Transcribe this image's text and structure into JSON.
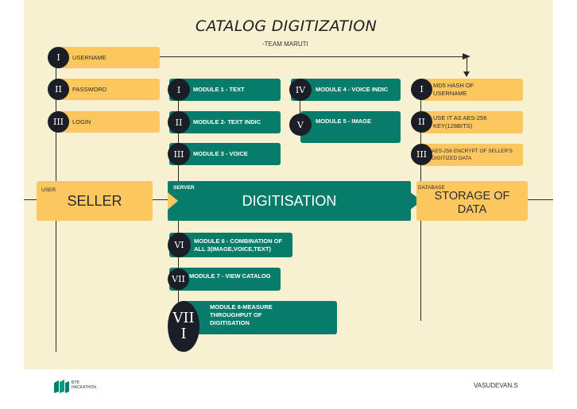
{
  "title": "CATALOG DIGITIZATION",
  "subtitle": "-TEAM MARUTI",
  "seller": {
    "tag": "USER",
    "label": "SELLER",
    "steps": [
      {
        "num": "I",
        "label": "USERNAME"
      },
      {
        "num": "II",
        "label": "PASSWORD"
      },
      {
        "num": "III",
        "label": "LOGIN"
      }
    ]
  },
  "server": {
    "tag": "SERVER",
    "label": "DIGITISATION",
    "modules": [
      {
        "num": "I",
        "label": "MODULE 1 - TEXT"
      },
      {
        "num": "II",
        "label": "MODULE 2- TEXT INDIC"
      },
      {
        "num": "III",
        "label": "MODULE 3 - VOICE"
      },
      {
        "num": "IV",
        "label": "MODULE 4 - VOICE INDIC"
      },
      {
        "num": "V",
        "label": "MODULE 5 - IMAGE"
      },
      {
        "num": "VI",
        "label": "MODULE 6 - COMBINATION OF ALL 3(IMAGE,VOICE,TEXT)"
      },
      {
        "num": "VII",
        "label": "MODULE 7 - VIEW CATALOG"
      },
      {
        "num": "VII I",
        "label": "MODULE 8-MEASURE THROUGHPUT OF DIGITISATION"
      }
    ]
  },
  "database": {
    "tag": "DATABASE",
    "label": "STORAGE OF DATA",
    "steps": [
      {
        "num": "I",
        "label": "MD5 HASH OF USERNAME"
      },
      {
        "num": "II",
        "label": "USE IT AS AES-256 KEY(128BITS)"
      },
      {
        "num": "III",
        "label": "AES-256 ENCRYPT OF SELLER'S DIGITIZED DATA"
      }
    ]
  },
  "footer": {
    "logo_text": "BTB HACKATHON",
    "author": "VASUDEVAN.S"
  }
}
